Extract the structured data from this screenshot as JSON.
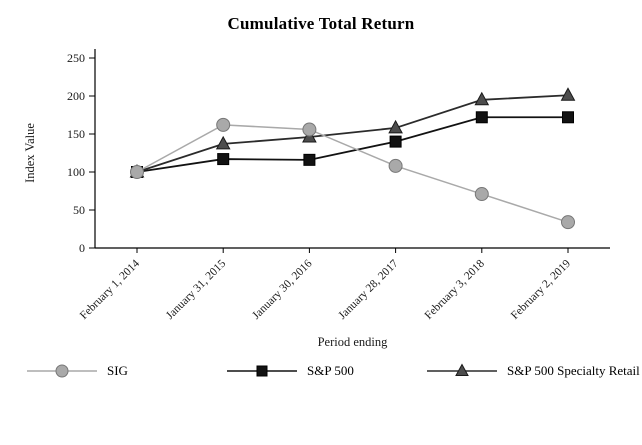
{
  "chart_data": {
    "type": "line",
    "title": "Cumulative Total Return",
    "xlabel": "Period ending",
    "ylabel": "Index Value",
    "ylim": [
      0,
      250
    ],
    "yticks": [
      0,
      50,
      100,
      150,
      200,
      250
    ],
    "grid": false,
    "legend_position": "bottom",
    "categories": [
      "February 1, 2014",
      "January 31, 2015",
      "January 30, 2016",
      "January 28, 2017",
      "February 3, 2018",
      "February 2, 2019"
    ],
    "series": [
      {
        "name": "SIG",
        "marker": "circle",
        "color": "#a9a9a9",
        "line_color": "#a9a9a9",
        "marker_stroke": "#777777",
        "values": [
          100,
          162,
          156,
          108,
          71,
          34
        ]
      },
      {
        "name": "S&P 500",
        "marker": "square",
        "color": "#121212",
        "line_color": "#121212",
        "marker_stroke": "#000000",
        "values": [
          100,
          117,
          116,
          140,
          172,
          172
        ]
      },
      {
        "name": "S&P 500 Specialty Retail",
        "marker": "triangle",
        "color": "#4d4d4d",
        "line_color": "#2b2b2b",
        "marker_stroke": "#1a1a1a",
        "values": [
          100,
          137,
          146,
          158,
          195,
          201
        ]
      }
    ]
  }
}
